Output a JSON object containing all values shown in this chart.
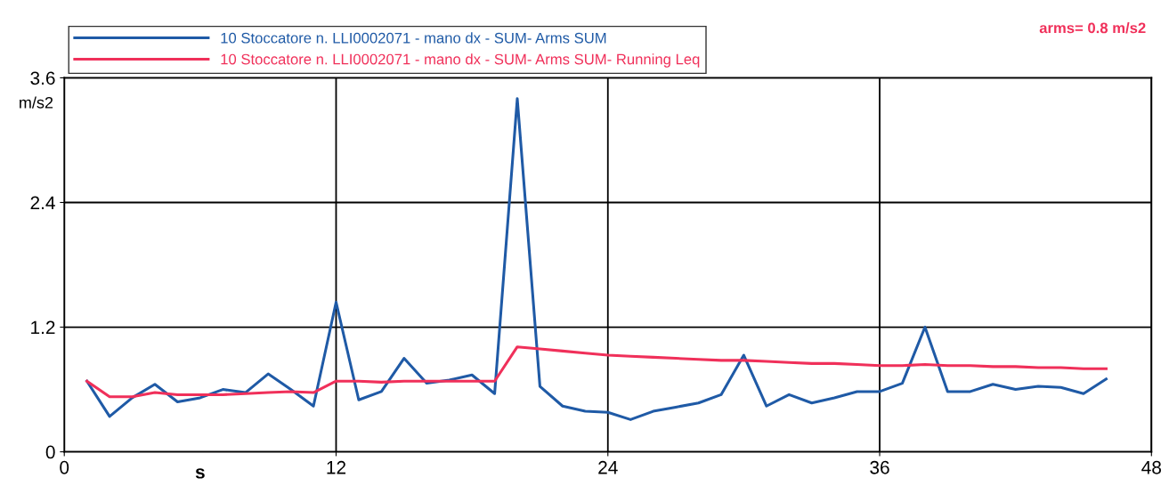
{
  "chart_data": {
    "type": "line",
    "xlabel": "s",
    "ylabel": "m/s2",
    "x": [
      1,
      2,
      3,
      4,
      5,
      6,
      7,
      8,
      9,
      10,
      11,
      12,
      13,
      14,
      15,
      16,
      17,
      18,
      19,
      20,
      21,
      22,
      23,
      24,
      25,
      26,
      27,
      28,
      29,
      30,
      31,
      32,
      33,
      34,
      35,
      36,
      37,
      38,
      39,
      40,
      41,
      42,
      43,
      44,
      45,
      46
    ],
    "series": [
      {
        "name": "10 Stoccatore n. LLI0002071 - mano dx - SUM- Arms SUM",
        "color": "#1f5aa6",
        "values": [
          0.68,
          0.34,
          0.52,
          0.65,
          0.48,
          0.52,
          0.6,
          0.57,
          0.75,
          0.6,
          0.44,
          1.44,
          0.5,
          0.58,
          0.9,
          0.66,
          0.69,
          0.74,
          0.56,
          3.4,
          0.63,
          0.44,
          0.39,
          0.38,
          0.31,
          0.39,
          0.43,
          0.47,
          0.55,
          0.93,
          0.44,
          0.55,
          0.47,
          0.52,
          0.58,
          0.58,
          0.66,
          1.2,
          0.58,
          0.58,
          0.65,
          0.6,
          0.63,
          0.62,
          0.56,
          0.7
        ]
      },
      {
        "name": "10 Stoccatore n. LLI0002071 - mano dx - SUM- Arms SUM- Running Leq",
        "color": "#f0305a",
        "values": [
          0.68,
          0.53,
          0.53,
          0.57,
          0.55,
          0.55,
          0.55,
          0.56,
          0.57,
          0.58,
          0.57,
          0.68,
          0.68,
          0.67,
          0.68,
          0.68,
          0.68,
          0.68,
          0.68,
          1.01,
          0.99,
          0.97,
          0.95,
          0.93,
          0.92,
          0.91,
          0.9,
          0.89,
          0.88,
          0.88,
          0.87,
          0.86,
          0.85,
          0.85,
          0.84,
          0.83,
          0.83,
          0.84,
          0.83,
          0.83,
          0.82,
          0.82,
          0.81,
          0.81,
          0.8,
          0.8
        ]
      }
    ],
    "xlim": [
      0,
      48
    ],
    "xticks": [
      0,
      12,
      24,
      36,
      48
    ],
    "ylim": [
      0,
      3.6
    ],
    "yticks": [
      0,
      1.2,
      2.4,
      3.6
    ],
    "grid": true,
    "legend": "top",
    "marker": "none",
    "line_style": "solid",
    "annotations": [
      "arms= 0.8 m/s2"
    ]
  }
}
